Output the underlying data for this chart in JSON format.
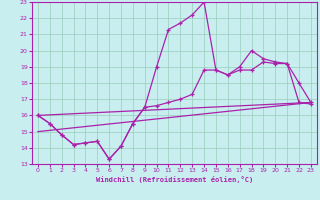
{
  "xlabel": "Windchill (Refroidissement éolien,°C)",
  "xlim": [
    -0.5,
    23.5
  ],
  "ylim": [
    13,
    23
  ],
  "xticks": [
    0,
    1,
    2,
    3,
    4,
    5,
    6,
    7,
    8,
    9,
    10,
    11,
    12,
    13,
    14,
    15,
    16,
    17,
    18,
    19,
    20,
    21,
    22,
    23
  ],
  "yticks": [
    13,
    14,
    15,
    16,
    17,
    18,
    19,
    20,
    21,
    22,
    23
  ],
  "bg_color": "#c8eef0",
  "line_color": "#aa22aa",
  "grid_color": "#99ccbb",
  "line1_x": [
    0,
    1,
    2,
    3,
    4,
    5,
    6,
    7,
    8,
    9,
    10,
    11,
    12,
    13,
    14,
    15,
    16,
    17,
    18,
    19,
    20,
    21,
    22,
    23
  ],
  "line1_y": [
    16.0,
    15.5,
    14.8,
    14.2,
    14.3,
    14.4,
    13.3,
    14.1,
    15.5,
    16.5,
    19.0,
    21.3,
    21.7,
    22.2,
    23.0,
    18.8,
    18.5,
    18.8,
    18.8,
    19.3,
    19.2,
    19.2,
    18.0,
    16.8
  ],
  "line2_x": [
    0,
    1,
    2,
    3,
    4,
    5,
    6,
    7,
    8,
    9,
    10,
    11,
    12,
    13,
    14,
    15,
    16,
    17,
    18,
    19,
    20,
    21,
    22,
    23
  ],
  "line2_y": [
    16.0,
    15.5,
    14.8,
    14.2,
    14.3,
    14.4,
    13.3,
    14.1,
    15.5,
    16.5,
    16.6,
    16.8,
    17.0,
    17.3,
    18.8,
    18.8,
    18.5,
    19.0,
    20.0,
    19.5,
    19.3,
    19.2,
    16.8,
    16.7
  ],
  "trend1_x": [
    0,
    23
  ],
  "trend1_y": [
    16.0,
    16.8
  ],
  "trend2_x": [
    0,
    23
  ],
  "trend2_y": [
    15.0,
    16.8
  ]
}
